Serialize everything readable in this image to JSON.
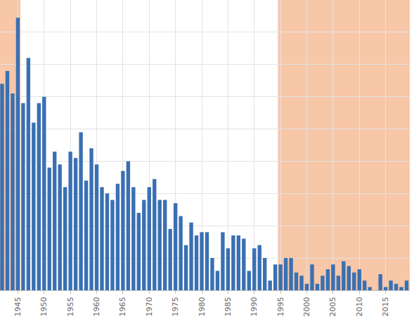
{
  "chart_data": {
    "type": "bar",
    "x": [
      1942,
      1943,
      1944,
      1945,
      1946,
      1947,
      1948,
      1949,
      1950,
      1951,
      1952,
      1953,
      1954,
      1955,
      1956,
      1957,
      1958,
      1959,
      1960,
      1961,
      1962,
      1963,
      1964,
      1965,
      1966,
      1967,
      1968,
      1969,
      1970,
      1971,
      1972,
      1973,
      1974,
      1975,
      1976,
      1977,
      1978,
      1979,
      1980,
      1981,
      1982,
      1983,
      1984,
      1985,
      1986,
      1987,
      1988,
      1989,
      1990,
      1991,
      1992,
      1993,
      1994,
      1995,
      1996,
      1997,
      1998,
      1999,
      2000,
      2001,
      2002,
      2003,
      2004,
      2005,
      2006,
      2007,
      2008,
      2009,
      2010,
      2011,
      2012,
      2013,
      2014,
      2015,
      2016,
      2017,
      2018,
      2019
    ],
    "values": [
      64,
      68,
      61,
      84.5,
      58,
      72,
      52,
      58,
      60,
      38,
      43,
      39,
      32,
      43,
      41,
      49,
      34,
      44,
      39,
      32,
      30,
      28,
      33,
      37,
      40,
      32,
      24,
      28,
      32,
      34.5,
      28,
      28,
      19,
      27,
      23,
      14,
      21,
      17,
      18,
      18,
      10,
      6,
      18,
      13,
      17,
      17,
      16,
      6,
      13,
      14,
      10,
      3,
      8,
      8,
      10,
      10,
      5.5,
      4.5,
      2,
      8,
      2,
      4.5,
      6.5,
      8,
      4.5,
      9,
      7.5,
      5.5,
      6.5,
      3,
      1,
      0,
      5,
      1,
      3,
      2,
      1,
      3
    ],
    "color": "#3a70b2",
    "xlim": [
      1941.6,
      2019.6
    ],
    "xticks": [
      1945,
      1950,
      1955,
      1960,
      1965,
      1970,
      1975,
      1980,
      1985,
      1990,
      1995,
      2000,
      2005,
      2010,
      2015
    ],
    "ylim": [
      0,
      90
    ],
    "yticks": [
      0,
      10,
      20,
      30,
      40,
      50,
      60,
      70,
      80,
      90
    ],
    "grid": true,
    "tick_labels": "x",
    "shaded_spans": [
      [
        1941.6,
        1945.5
      ],
      [
        1994.5,
        2019.6
      ]
    ],
    "shaded_color": "#f7c7a8"
  }
}
